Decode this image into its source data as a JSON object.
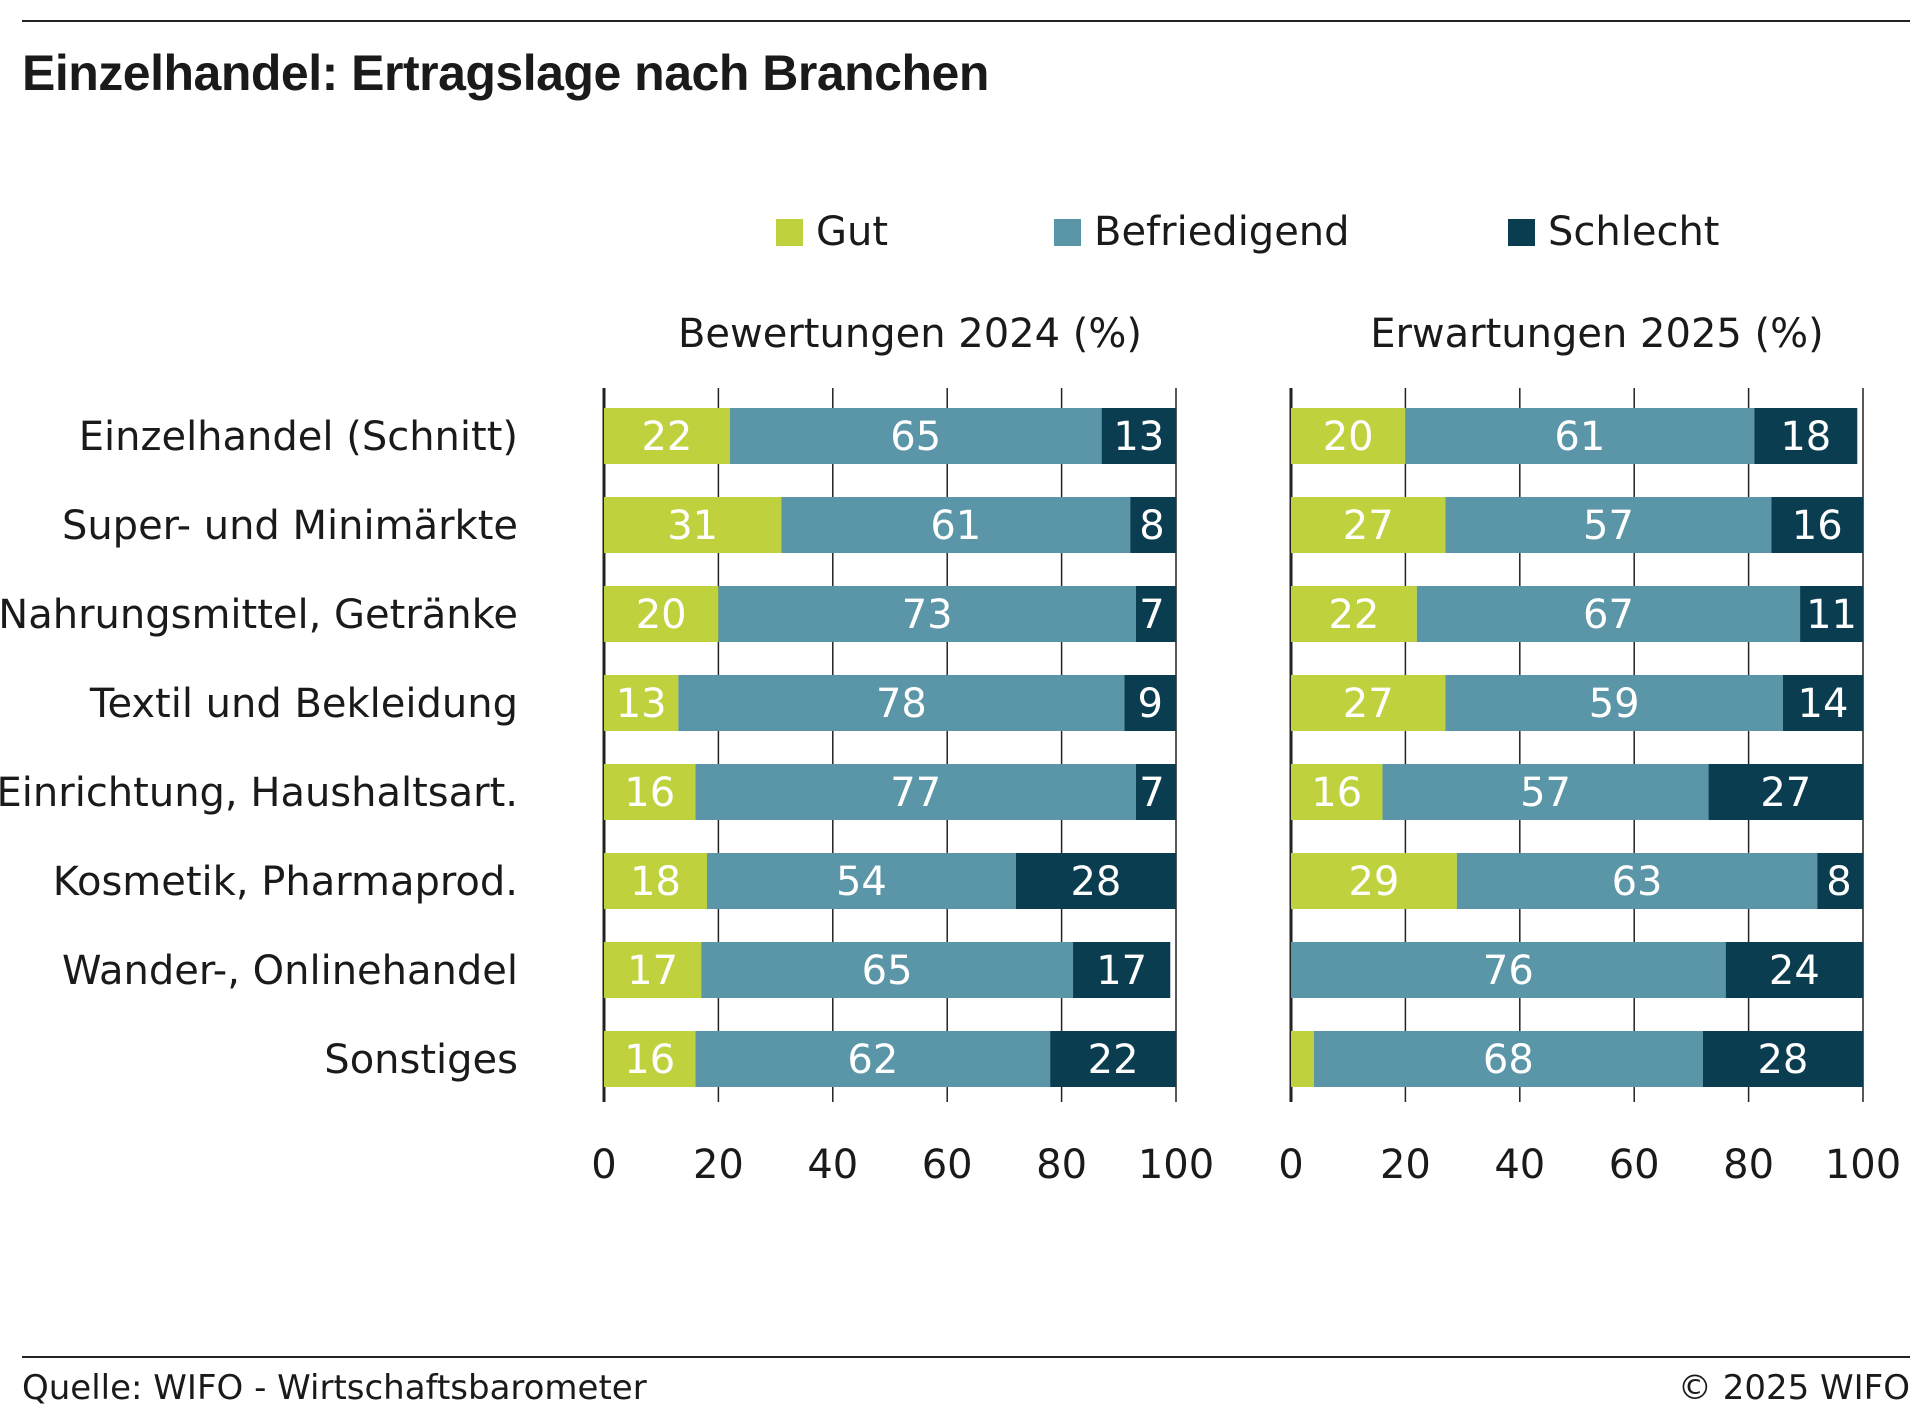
{
  "header": {
    "title": "Einzelhandel: Ertragslage nach Branchen"
  },
  "footer": {
    "source": "Quelle: WIFO - Wirtschaftsbarometer",
    "copyright": "© 2025 WIFO"
  },
  "colors": {
    "gut": "#bfd23d",
    "befriedigend": "#5b95a8",
    "schlecht": "#0b3d50",
    "label_on_light": "#ffffff",
    "label_on_dark": "#ffffff"
  },
  "chart_data": {
    "type": "bar",
    "orientation": "horizontal",
    "stacked": true,
    "legend": {
      "placement": "top",
      "entries": [
        "Gut",
        "Befriedigend",
        "Schlecht"
      ]
    },
    "categories": [
      "Einzelhandel (Schnitt)",
      "Super- und Minimärkte",
      "Nahrungsmittel, Getränke",
      "Textil und Bekleidung",
      "Einrichtung, Haushaltsart.",
      "Kosmetik, Pharmaprod.",
      "Wander-, Onlinehandel",
      "Sonstiges"
    ],
    "xlim": [
      0,
      100
    ],
    "xticks": [
      "0",
      "20",
      "40",
      "60",
      "80",
      "100"
    ],
    "panels": [
      {
        "title": "Bewertungen 2024 (%)",
        "series": [
          {
            "name": "Gut",
            "values": [
              22,
              31,
              20,
              13,
              16,
              18,
              17,
              16
            ]
          },
          {
            "name": "Befriedigend",
            "values": [
              65,
              61,
              73,
              78,
              77,
              54,
              65,
              62
            ]
          },
          {
            "name": "Schlecht",
            "values": [
              13,
              8,
              7,
              9,
              7,
              28,
              17,
              22
            ]
          }
        ],
        "labels": [
          [
            "22",
            "65",
            "13"
          ],
          [
            "31",
            "61",
            "8"
          ],
          [
            "20",
            "73",
            "7"
          ],
          [
            "13",
            "78",
            "9"
          ],
          [
            "16",
            "77",
            "7"
          ],
          [
            "18",
            "54",
            "28"
          ],
          [
            "17",
            "65",
            "17"
          ],
          [
            "16",
            "62",
            "22"
          ]
        ]
      },
      {
        "title": "Erwartungen 2025 (%)",
        "series": [
          {
            "name": "Gut",
            "values": [
              20,
              27,
              22,
              27,
              16,
              29,
              0,
              4
            ]
          },
          {
            "name": "Befriedigend",
            "values": [
              61,
              57,
              67,
              59,
              57,
              63,
              76,
              68
            ]
          },
          {
            "name": "Schlecht",
            "values": [
              18,
              16,
              11,
              14,
              27,
              8,
              24,
              28
            ]
          }
        ],
        "labels": [
          [
            "20",
            "61",
            "18"
          ],
          [
            "27",
            "57",
            "16"
          ],
          [
            "22",
            "67",
            "11"
          ],
          [
            "27",
            "59",
            "14"
          ],
          [
            "16",
            "57",
            "27"
          ],
          [
            "29",
            "63",
            "8"
          ],
          [
            "",
            "76",
            "24"
          ],
          [
            "",
            "68",
            "28"
          ]
        ]
      }
    ]
  }
}
